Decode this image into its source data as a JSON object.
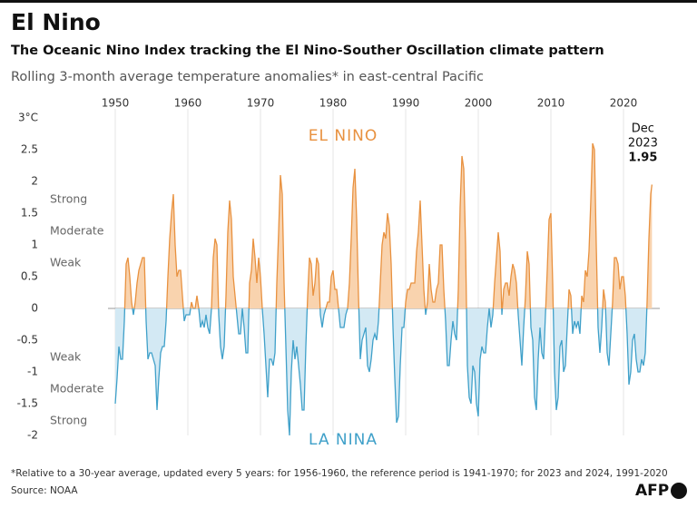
{
  "chart_data": {
    "type": "area",
    "title": "El Nino",
    "subtitle": "The Oceanic Nino Index tracking the El Nino-Souther Oscillation climate pattern",
    "description": "Rolling 3-month average temperature anomalies* in east-central Pacific",
    "upper_label": "EL NINO",
    "lower_label": "LA NINA",
    "el_nino_levels": [
      "Strong",
      "Moderate",
      "Weak"
    ],
    "la_nina_levels": [
      "Weak",
      "Moderate",
      "Strong"
    ],
    "end_label_lines": [
      "Dec",
      "2023"
    ],
    "footnote": "*Relative to a 30-year average, updated every 5 years: for 1956-1960, the reference period is 1941-1970; for 2023 and 2024, 1991-2020",
    "source": "Source: NOAA",
    "logo": "AFP",
    "colors": {
      "el_nino_line": "#e8913f",
      "el_nino_fill": "#f9d3ae",
      "la_nina_line": "#3fa0c9",
      "la_nina_fill": "#d3e9f4"
    },
    "xlim": [
      1949,
      2025
    ],
    "xticks": [
      1950,
      1960,
      1970,
      1980,
      1990,
      2000,
      2010,
      2020
    ],
    "ylim": [
      -2,
      3
    ],
    "yticks": [
      {
        "value": 3,
        "label": "3°C"
      },
      2.5,
      2,
      1.5,
      1,
      0.5,
      0,
      -0.5,
      -1,
      -1.5,
      -2
    ],
    "x": [
      1950,
      1950.25,
      1950.5,
      1950.75,
      1951,
      1951.25,
      1951.5,
      1951.75,
      1952,
      1952.25,
      1952.5,
      1952.75,
      1953,
      1953.25,
      1953.5,
      1953.75,
      1954,
      1954.25,
      1954.5,
      1954.75,
      1955,
      1955.25,
      1955.5,
      1955.75,
      1956,
      1956.25,
      1956.5,
      1956.75,
      1957,
      1957.25,
      1957.5,
      1957.75,
      1958,
      1958.25,
      1958.5,
      1958.75,
      1959,
      1959.25,
      1959.5,
      1959.75,
      1960,
      1960.25,
      1960.5,
      1960.75,
      1961,
      1961.25,
      1961.5,
      1961.75,
      1962,
      1962.25,
      1962.5,
      1962.75,
      1963,
      1963.25,
      1963.5,
      1963.75,
      1964,
      1964.25,
      1964.5,
      1964.75,
      1965,
      1965.25,
      1965.5,
      1965.75,
      1966,
      1966.25,
      1966.5,
      1966.75,
      1967,
      1967.25,
      1967.5,
      1967.75,
      1968,
      1968.25,
      1968.5,
      1968.75,
      1969,
      1969.25,
      1969.5,
      1969.75,
      1970,
      1970.25,
      1970.5,
      1970.75,
      1971,
      1971.25,
      1971.5,
      1971.75,
      1972,
      1972.25,
      1972.5,
      1972.75,
      1973,
      1973.25,
      1973.5,
      1973.75,
      1974,
      1974.25,
      1974.5,
      1974.75,
      1975,
      1975.25,
      1975.5,
      1975.75,
      1976,
      1976.25,
      1976.5,
      1976.75,
      1977,
      1977.25,
      1977.5,
      1977.75,
      1978,
      1978.25,
      1978.5,
      1978.75,
      1979,
      1979.25,
      1979.5,
      1979.75,
      1980,
      1980.25,
      1980.5,
      1980.75,
      1981,
      1981.25,
      1981.5,
      1981.75,
      1982,
      1982.25,
      1982.5,
      1982.75,
      1983,
      1983.25,
      1983.5,
      1983.75,
      1984,
      1984.25,
      1984.5,
      1984.75,
      1985,
      1985.25,
      1985.5,
      1985.75,
      1986,
      1986.25,
      1986.5,
      1986.75,
      1987,
      1987.25,
      1987.5,
      1987.75,
      1988,
      1988.25,
      1988.5,
      1988.75,
      1989,
      1989.25,
      1989.5,
      1989.75,
      1990,
      1990.25,
      1990.5,
      1990.75,
      1991,
      1991.25,
      1991.5,
      1991.75,
      1992,
      1992.25,
      1992.5,
      1992.75,
      1993,
      1993.25,
      1993.5,
      1993.75,
      1994,
      1994.25,
      1994.5,
      1994.75,
      1995,
      1995.25,
      1995.5,
      1995.75,
      1996,
      1996.25,
      1996.5,
      1996.75,
      1997,
      1997.25,
      1997.5,
      1997.75,
      1998,
      1998.25,
      1998.5,
      1998.75,
      1999,
      1999.25,
      1999.5,
      1999.75,
      2000,
      2000.25,
      2000.5,
      2000.75,
      2001,
      2001.25,
      2001.5,
      2001.75,
      2002,
      2002.25,
      2002.5,
      2002.75,
      2003,
      2003.25,
      2003.5,
      2003.75,
      2004,
      2004.25,
      2004.5,
      2004.75,
      2005,
      2005.25,
      2005.5,
      2005.75,
      2006,
      2006.25,
      2006.5,
      2006.75,
      2007,
      2007.25,
      2007.5,
      2007.75,
      2008,
      2008.25,
      2008.5,
      2008.75,
      2009,
      2009.25,
      2009.5,
      2009.75,
      2010,
      2010.25,
      2010.5,
      2010.75,
      2011,
      2011.25,
      2011.5,
      2011.75,
      2012,
      2012.25,
      2012.5,
      2012.75,
      2013,
      2013.25,
      2013.5,
      2013.75,
      2014,
      2014.25,
      2014.5,
      2014.75,
      2015,
      2015.25,
      2015.5,
      2015.75,
      2016,
      2016.25,
      2016.5,
      2016.75,
      2017,
      2017.25,
      2017.5,
      2017.75,
      2018,
      2018.25,
      2018.5,
      2018.75,
      2019,
      2019.25,
      2019.5,
      2019.75,
      2020,
      2020.25,
      2020.5,
      2020.75,
      2021,
      2021.25,
      2021.5,
      2021.75,
      2022,
      2022.25,
      2022.5,
      2022.75,
      2023,
      2023.25,
      2023.5,
      2023.75,
      2023.92
    ],
    "values": [
      -1.5,
      -1.1,
      -0.6,
      -0.8,
      -0.8,
      -0.2,
      0.7,
      0.8,
      0.5,
      0.1,
      -0.1,
      0.1,
      0.4,
      0.6,
      0.7,
      0.8,
      0.8,
      -0.2,
      -0.8,
      -0.7,
      -0.7,
      -0.8,
      -0.9,
      -1.6,
      -1.1,
      -0.7,
      -0.6,
      -0.6,
      -0.2,
      0.5,
      1.1,
      1.5,
      1.8,
      1.0,
      0.5,
      0.6,
      0.6,
      0.2,
      -0.2,
      -0.1,
      -0.1,
      -0.1,
      0.1,
      0.0,
      0.0,
      0.2,
      0.0,
      -0.3,
      -0.2,
      -0.3,
      -0.1,
      -0.3,
      -0.4,
      0.0,
      0.8,
      1.1,
      1.0,
      -0.1,
      -0.6,
      -0.8,
      -0.6,
      0.2,
      1.2,
      1.7,
      1.4,
      0.5,
      0.2,
      -0.1,
      -0.4,
      -0.4,
      0.0,
      -0.3,
      -0.7,
      -0.7,
      0.4,
      0.6,
      1.1,
      0.8,
      0.4,
      0.8,
      0.5,
      0.0,
      -0.4,
      -0.9,
      -1.4,
      -0.8,
      -0.8,
      -0.9,
      -0.7,
      0.4,
      1.2,
      2.1,
      1.8,
      0.4,
      -0.6,
      -1.6,
      -2.0,
      -1.0,
      -0.5,
      -0.8,
      -0.6,
      -0.9,
      -1.2,
      -1.6,
      -1.6,
      -0.6,
      0.2,
      0.8,
      0.7,
      0.2,
      0.4,
      0.8,
      0.7,
      -0.1,
      -0.3,
      -0.1,
      0.0,
      0.1,
      0.1,
      0.5,
      0.6,
      0.3,
      0.3,
      0.0,
      -0.3,
      -0.3,
      -0.3,
      -0.1,
      0.0,
      0.4,
      1.1,
      1.9,
      2.2,
      1.4,
      0.2,
      -0.8,
      -0.5,
      -0.4,
      -0.3,
      -0.9,
      -1.0,
      -0.8,
      -0.5,
      -0.4,
      -0.5,
      -0.2,
      0.4,
      1.0,
      1.2,
      1.1,
      1.5,
      1.3,
      0.7,
      -0.3,
      -1.1,
      -1.8,
      -1.7,
      -0.9,
      -0.3,
      -0.3,
      0.1,
      0.3,
      0.3,
      0.4,
      0.4,
      0.4,
      0.9,
      1.2,
      1.7,
      1.0,
      0.3,
      -0.1,
      0.1,
      0.7,
      0.3,
      0.1,
      0.1,
      0.3,
      0.4,
      1.0,
      1.0,
      0.3,
      -0.2,
      -0.9,
      -0.9,
      -0.5,
      -0.2,
      -0.4,
      -0.5,
      0.3,
      1.6,
      2.4,
      2.2,
      1.0,
      -0.9,
      -1.4,
      -1.5,
      -0.9,
      -1.0,
      -1.5,
      -1.7,
      -0.8,
      -0.6,
      -0.7,
      -0.7,
      -0.3,
      0.0,
      -0.3,
      -0.1,
      0.4,
      0.8,
      1.2,
      0.9,
      -0.1,
      0.3,
      0.4,
      0.4,
      0.2,
      0.5,
      0.7,
      0.6,
      0.4,
      -0.1,
      -0.5,
      -0.9,
      -0.3,
      0.2,
      0.9,
      0.7,
      -0.3,
      -0.5,
      -1.4,
      -1.6,
      -0.8,
      -0.3,
      -0.7,
      -0.8,
      -0.1,
      0.6,
      1.4,
      1.5,
      0.4,
      -1.0,
      -1.6,
      -1.4,
      -0.6,
      -0.5,
      -1.0,
      -0.9,
      -0.3,
      0.3,
      0.2,
      -0.4,
      -0.2,
      -0.3,
      -0.2,
      -0.4,
      0.2,
      0.1,
      0.6,
      0.5,
      0.9,
      1.7,
      2.6,
      2.5,
      1.0,
      -0.3,
      -0.7,
      -0.3,
      0.3,
      0.1,
      -0.7,
      -0.9,
      -0.4,
      0.1,
      0.8,
      0.8,
      0.7,
      0.3,
      0.5,
      0.5,
      0.2,
      -0.4,
      -1.2,
      -1.0,
      -0.5,
      -0.4,
      -0.8,
      -1.0,
      -1.0,
      -0.8,
      -0.9,
      -0.7,
      0.1,
      1.1,
      1.8,
      1.95
    ]
  }
}
